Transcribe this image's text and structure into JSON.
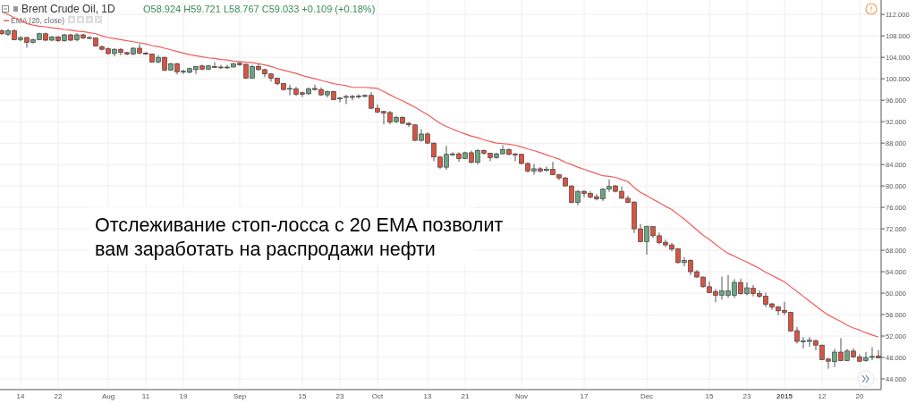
{
  "chart_data": {
    "type": "candlestick",
    "title": "Brent Crude Oil, 1D",
    "annotations": [
      "O58.924 H59.721 L58.767 C59.033 +0.109 (+0.18%)",
      "Отслеживание стоп-лосса с 20 EMA позволит вам заработать на распродажи нефти"
    ],
    "categories": [
      null,
      null,
      null,
      "14",
      null,
      null,
      null,
      null,
      null,
      "22",
      null,
      null,
      null,
      null,
      null,
      null,
      null,
      "Aug",
      null,
      null,
      null,
      null,
      null,
      "11",
      null,
      null,
      null,
      null,
      null,
      "19",
      null,
      null,
      null,
      null,
      null,
      null,
      null,
      null,
      "Sep",
      null,
      null,
      null,
      null,
      null,
      null,
      null,
      null,
      null,
      "15",
      null,
      null,
      null,
      null,
      null,
      "23",
      null,
      null,
      null,
      null,
      null,
      "Oct",
      null,
      null,
      null,
      null,
      null,
      null,
      null,
      "13",
      null,
      null,
      null,
      null,
      null,
      "21",
      null,
      null,
      null,
      null,
      null,
      null,
      null,
      null,
      "Nov",
      null,
      null,
      null,
      null,
      null,
      null,
      null,
      null,
      null,
      "17",
      null,
      null,
      null,
      null,
      null,
      null,
      null,
      null,
      null,
      "Dec",
      null,
      null,
      null,
      null,
      null,
      null,
      null,
      null,
      null,
      "15",
      null,
      null,
      null,
      null,
      null,
      "23",
      null,
      null,
      null,
      null,
      null,
      "2015",
      null,
      null,
      null,
      null,
      null,
      "12",
      null,
      null,
      null,
      null,
      null,
      "20",
      null,
      null,
      null
    ],
    "ohlc": [
      [
        109.0,
        109.2,
        108.2,
        108.4
      ],
      [
        108.3,
        109.3,
        108.0,
        109.0
      ],
      [
        109.0,
        109.2,
        107.2,
        107.3
      ],
      [
        107.3,
        107.9,
        107.0,
        107.7
      ],
      [
        107.7,
        107.8,
        105.8,
        106.8
      ],
      [
        106.8,
        107.5,
        106.6,
        107.3
      ],
      [
        107.3,
        108.6,
        107.2,
        108.4
      ],
      [
        108.4,
        108.6,
        107.0,
        107.2
      ],
      [
        107.2,
        108.0,
        107.0,
        107.8
      ],
      [
        107.8,
        108.0,
        106.9,
        107.1
      ],
      [
        107.1,
        108.4,
        106.9,
        108.2
      ],
      [
        108.2,
        108.4,
        107.0,
        107.2
      ],
      [
        107.3,
        108.5,
        107.0,
        108.2
      ],
      [
        108.2,
        108.4,
        107.4,
        107.6
      ],
      [
        107.7,
        107.9,
        107.4,
        107.6
      ],
      [
        107.6,
        107.7,
        106.0,
        106.1
      ],
      [
        106.0,
        106.2,
        105.3,
        105.5
      ],
      [
        105.6,
        105.8,
        104.5,
        104.7
      ],
      [
        104.7,
        105.7,
        104.2,
        105.5
      ],
      [
        105.5,
        105.7,
        104.4,
        104.9
      ],
      [
        104.9,
        105.0,
        104.4,
        104.6
      ],
      [
        104.6,
        105.9,
        104.4,
        105.7
      ],
      [
        105.7,
        106.5,
        104.6,
        104.8
      ],
      [
        104.8,
        105.0,
        104.5,
        104.6
      ],
      [
        104.6,
        104.7,
        103.0,
        103.1
      ],
      [
        103.1,
        104.4,
        102.9,
        104.0
      ],
      [
        104.0,
        104.1,
        101.4,
        101.6
      ],
      [
        101.6,
        103.0,
        101.5,
        102.8
      ],
      [
        102.8,
        103.0,
        100.8,
        101.3
      ],
      [
        101.3,
        101.7,
        100.9,
        101.4
      ],
      [
        101.2,
        102.1,
        101.0,
        101.9
      ],
      [
        101.7,
        102.4,
        100.9,
        102.3
      ],
      [
        102.4,
        102.6,
        101.6,
        101.8
      ],
      [
        101.8,
        102.6,
        101.6,
        102.4
      ],
      [
        102.3,
        103.1,
        102.0,
        102.1
      ],
      [
        102.2,
        102.6,
        101.8,
        102.2
      ],
      [
        102.1,
        102.6,
        101.8,
        102.2
      ],
      [
        102.2,
        103.0,
        102.1,
        102.8
      ],
      [
        102.9,
        103.1,
        102.4,
        102.6
      ],
      [
        102.7,
        102.8,
        100.0,
        100.1
      ],
      [
        100.1,
        102.6,
        100.0,
        102.3
      ],
      [
        102.3,
        102.8,
        101.5,
        101.7
      ],
      [
        101.7,
        101.9,
        100.3,
        100.9
      ],
      [
        100.9,
        101.0,
        99.5,
        100.1
      ],
      [
        100.1,
        100.2,
        98.8,
        99.1
      ],
      [
        99.1,
        99.2,
        97.8,
        98.0
      ],
      [
        98.1,
        98.9,
        96.9,
        98.2
      ],
      [
        98.1,
        98.5,
        96.8,
        97.1
      ],
      [
        97.4,
        97.6,
        96.6,
        97.1
      ],
      [
        97.2,
        98.4,
        97.0,
        98.1
      ],
      [
        98.2,
        98.9,
        97.8,
        98.0
      ],
      [
        98.0,
        98.4,
        96.8,
        97.0
      ],
      [
        97.0,
        97.8,
        96.5,
        97.6
      ],
      [
        97.6,
        97.8,
        96.0,
        96.1
      ],
      [
        96.3,
        96.6,
        95.6,
        96.4
      ],
      [
        96.6,
        97.0,
        95.3,
        96.7
      ],
      [
        96.7,
        97.0,
        96.0,
        96.6
      ],
      [
        96.7,
        97.1,
        96.3,
        96.8
      ],
      [
        96.7,
        97.1,
        96.5,
        96.9
      ],
      [
        96.9,
        97.5,
        94.3,
        94.5
      ],
      [
        94.5,
        95.2,
        93.6,
        93.8
      ],
      [
        93.9,
        94.0,
        91.5,
        93.6
      ],
      [
        93.7,
        94.0,
        91.5,
        91.9
      ],
      [
        92.0,
        93.1,
        91.7,
        92.8
      ],
      [
        92.8,
        93.0,
        91.5,
        91.7
      ],
      [
        91.7,
        91.9,
        91.0,
        91.4
      ],
      [
        91.4,
        91.5,
        88.4,
        88.5
      ],
      [
        88.5,
        90.6,
        88.3,
        89.7
      ],
      [
        89.7,
        90.0,
        87.8,
        88.0
      ],
      [
        88.0,
        88.1,
        84.6,
        85.4
      ],
      [
        85.4,
        85.5,
        83.2,
        83.5
      ],
      [
        83.5,
        87.5,
        83.0,
        85.9
      ],
      [
        85.8,
        86.3,
        85.6,
        86.0
      ],
      [
        86.0,
        86.3,
        84.5,
        85.1
      ],
      [
        85.1,
        86.4,
        85.0,
        86.2
      ],
      [
        86.2,
        86.6,
        84.2,
        84.4
      ],
      [
        84.4,
        86.9,
        84.0,
        86.6
      ],
      [
        86.6,
        86.8,
        85.8,
        86.1
      ],
      [
        86.1,
        86.2,
        84.6,
        85.3
      ],
      [
        85.3,
        86.2,
        85.1,
        86.0
      ],
      [
        86.0,
        87.6,
        85.9,
        86.8
      ],
      [
        86.8,
        87.0,
        85.7,
        85.9
      ],
      [
        86.0,
        86.1,
        84.6,
        85.8
      ],
      [
        85.9,
        86.0,
        84.0,
        84.2
      ],
      [
        84.2,
        84.4,
        82.5,
        82.8
      ],
      [
        82.8,
        84.1,
        82.1,
        83.2
      ],
      [
        83.2,
        83.5,
        82.5,
        82.8
      ],
      [
        82.9,
        83.6,
        82.6,
        83.1
      ],
      [
        83.1,
        84.5,
        82.0,
        82.1
      ],
      [
        82.1,
        82.2,
        81.1,
        81.5
      ],
      [
        81.5,
        81.7,
        79.9,
        80.0
      ],
      [
        80.0,
        80.1,
        76.8,
        76.9
      ],
      [
        76.9,
        79.2,
        76.4,
        79.0
      ],
      [
        79.0,
        79.2,
        77.9,
        78.6
      ],
      [
        78.6,
        79.0,
        77.7,
        77.9
      ],
      [
        78.0,
        78.5,
        77.3,
        77.6
      ],
      [
        77.6,
        79.6,
        77.2,
        79.4
      ],
      [
        79.4,
        81.2,
        78.9,
        79.9
      ],
      [
        80.0,
        80.2,
        78.8,
        79.0
      ],
      [
        79.0,
        79.9,
        77.6,
        77.7
      ],
      [
        77.7,
        78.2,
        76.8,
        76.9
      ],
      [
        77.0,
        77.1,
        71.2,
        72.0
      ],
      [
        72.0,
        72.9,
        69.5,
        69.6
      ],
      [
        69.6,
        72.6,
        67.2,
        72.4
      ],
      [
        72.4,
        72.5,
        70.3,
        70.7
      ],
      [
        70.7,
        71.3,
        69.1,
        69.4
      ],
      [
        69.5,
        70.0,
        68.6,
        69.0
      ],
      [
        69.0,
        69.4,
        67.8,
        68.2
      ],
      [
        68.3,
        68.4,
        65.5,
        65.7
      ],
      [
        65.7,
        66.7,
        65.0,
        66.1
      ],
      [
        66.1,
        66.3,
        63.4,
        64.0
      ],
      [
        64.0,
        64.3,
        62.9,
        63.0
      ],
      [
        63.0,
        63.1,
        61.0,
        61.2
      ],
      [
        61.2,
        62.2,
        60.0,
        60.1
      ],
      [
        60.3,
        60.8,
        58.3,
        59.6
      ],
      [
        59.6,
        63.1,
        58.8,
        60.4
      ],
      [
        59.6,
        63.4,
        59.1,
        60.4
      ],
      [
        59.6,
        62.6,
        59.1,
        62.0
      ],
      [
        62.0,
        62.7,
        59.7,
        59.9
      ],
      [
        59.9,
        62.0,
        59.6,
        61.0
      ],
      [
        60.9,
        61.5,
        59.4,
        59.9
      ],
      [
        59.9,
        60.5,
        59.1,
        59.4
      ],
      [
        59.4,
        60.1,
        57.4,
        57.9
      ],
      [
        58.0,
        58.2,
        56.9,
        57.4
      ],
      [
        57.4,
        57.6,
        55.9,
        56.7
      ],
      [
        56.8,
        58.4,
        55.9,
        56.4
      ],
      [
        56.4,
        56.5,
        52.8,
        52.9
      ],
      [
        53.0,
        53.7,
        50.6,
        51.0
      ],
      [
        51.0,
        51.8,
        49.7,
        51.1
      ],
      [
        51.0,
        51.8,
        50.0,
        51.2
      ],
      [
        51.1,
        51.4,
        49.3,
        50.3
      ],
      [
        50.3,
        50.4,
        47.5,
        47.6
      ],
      [
        47.7,
        47.9,
        45.9,
        47.3
      ],
      [
        47.2,
        49.6,
        46.2,
        49.0
      ],
      [
        49.0,
        51.6,
        47.3,
        47.4
      ],
      [
        47.4,
        49.6,
        47.3,
        49.2
      ],
      [
        49.2,
        49.7,
        47.9,
        48.1
      ],
      [
        48.1,
        48.6,
        47.1,
        47.3
      ],
      [
        47.4,
        49.0,
        47.2,
        48.0
      ],
      [
        48.0,
        49.9,
        47.5,
        48.2
      ],
      [
        48.3,
        49.4,
        47.8,
        47.9
      ]
    ],
    "colors": [
      "#d75442",
      "#6ba583",
      "#d75442",
      "#6ba583",
      "#d75442",
      "#6ba583",
      "#6ba583",
      "#d75442",
      "#6ba583",
      "#d75442",
      "#6ba583",
      "#d75442",
      "#6ba583",
      "#d75442",
      "#d75442",
      "#d75442",
      "#d75442",
      "#d75442",
      "#6ba583",
      "#d75442",
      "#d75442",
      "#6ba583",
      "#d75442",
      "#d75442",
      "#d75442",
      "#6ba583",
      "#d75442",
      "#6ba583",
      "#d75442",
      "#6ba583",
      "#6ba583",
      "#6ba583",
      "#d75442",
      "#6ba583",
      "#d75442",
      "#6ba583",
      "#6ba583",
      "#6ba583",
      "#d75442",
      "#d75442",
      "#6ba583",
      "#d75442",
      "#d75442",
      "#d75442",
      "#d75442",
      "#d75442",
      "#6ba583",
      "#d75442",
      "#d75442",
      "#6ba583",
      "#d75442",
      "#d75442",
      "#6ba583",
      "#d75442",
      "#6ba583",
      "#6ba583",
      "#d75442",
      "#6ba583",
      "#6ba583",
      "#d75442",
      "#d75442",
      "#d75442",
      "#d75442",
      "#6ba583",
      "#d75442",
      "#d75442",
      "#d75442",
      "#6ba583",
      "#d75442",
      "#d75442",
      "#d75442",
      "#6ba583",
      "#6ba583",
      "#d75442",
      "#6ba583",
      "#d75442",
      "#6ba583",
      "#d75442",
      "#d75442",
      "#6ba583",
      "#6ba583",
      "#d75442",
      "#d75442",
      "#d75442",
      "#d75442",
      "#6ba583",
      "#d75442",
      "#6ba583",
      "#d75442",
      "#d75442",
      "#d75442",
      "#d75442",
      "#6ba583",
      "#d75442",
      "#d75442",
      "#d75442",
      "#6ba583",
      "#6ba583",
      "#d75442",
      "#d75442",
      "#d75442",
      "#d75442",
      "#d75442",
      "#6ba583",
      "#d75442",
      "#d75442",
      "#d75442",
      "#d75442",
      "#d75442",
      "#6ba583",
      "#d75442",
      "#d75442",
      "#d75442",
      "#d75442",
      "#d75442",
      "#6ba583",
      "#6ba583",
      "#6ba583",
      "#d75442",
      "#6ba583",
      "#d75442",
      "#d75442",
      "#d75442",
      "#d75442",
      "#d75442",
      "#d75442",
      "#d75442",
      "#d75442",
      "#6ba583",
      "#6ba583",
      "#d75442",
      "#d75442",
      "#d75442",
      "#6ba583",
      "#d75442",
      "#6ba583",
      "#d75442",
      "#d75442",
      "#6ba583",
      "#6ba583",
      "#d75442"
    ],
    "series": [
      {
        "name": "EMA (20, close)",
        "type": "line",
        "color": "#f25a5a",
        "values": [
          112.5,
          112.0,
          111.4,
          110.9,
          110.3,
          110.0,
          109.8,
          109.7,
          109.5,
          109.4,
          109.2,
          109.1,
          108.9,
          108.8,
          108.6,
          108.4,
          108.0,
          107.7,
          107.5,
          107.3,
          107.1,
          106.9,
          106.7,
          106.5,
          106.2,
          106.0,
          105.7,
          105.4,
          105.1,
          104.8,
          104.5,
          104.3,
          104.1,
          103.9,
          103.8,
          103.6,
          103.5,
          103.3,
          103.2,
          103.1,
          103.0,
          102.8,
          102.6,
          102.3,
          101.9,
          101.6,
          101.3,
          101.0,
          100.6,
          100.3,
          100.0,
          99.7,
          99.4,
          99.1,
          98.9,
          98.7,
          98.4,
          98.4,
          98.4,
          98.3,
          98.2,
          97.6,
          97.0,
          96.4,
          95.9,
          95.3,
          94.7,
          94.0,
          93.3,
          92.5,
          91.7,
          91.1,
          90.6,
          90.1,
          89.7,
          89.3,
          89.0,
          88.6,
          88.3,
          88.0,
          87.9,
          87.8,
          87.6,
          87.3,
          86.9,
          86.6,
          86.2,
          85.8,
          85.4,
          85.0,
          84.4,
          84.0,
          83.5,
          83.1,
          82.7,
          82.3,
          81.9,
          81.8,
          81.6,
          81.2,
          80.8,
          79.7,
          78.8,
          78.2,
          77.5,
          76.9,
          76.2,
          75.6,
          74.7,
          73.8,
          72.8,
          71.8,
          70.8,
          70.0,
          69.1,
          68.2,
          67.4,
          66.9,
          66.3,
          65.8,
          65.2,
          64.6,
          63.9,
          63.3,
          62.7,
          62.1,
          61.2,
          60.3,
          59.4,
          58.5,
          57.6,
          56.7,
          55.9,
          55.3,
          54.7,
          54.0,
          53.5,
          53.1,
          52.6,
          52.2,
          51.8
        ]
      }
    ],
    "ylim": [
      42,
      114.7
    ],
    "yticks": [
      {
        "value": 44,
        "label": "44.000"
      },
      {
        "value": 48,
        "label": "48.000"
      },
      {
        "value": 52,
        "label": "52.000"
      },
      {
        "value": 56,
        "label": "56.000"
      },
      {
        "value": 60,
        "label": "60.000"
      },
      {
        "value": 64,
        "label": "64.000"
      },
      {
        "value": 68,
        "label": "68.000"
      },
      {
        "value": 72,
        "label": "72.000"
      },
      {
        "value": 76,
        "label": "76.000"
      },
      {
        "value": 80,
        "label": "80.000"
      },
      {
        "value": 84,
        "label": "84.000"
      },
      {
        "value": 88,
        "label": "88.000"
      },
      {
        "value": 92,
        "label": "92.000"
      },
      {
        "value": 96,
        "label": "96.000"
      },
      {
        "value": 100,
        "label": "100.000"
      },
      {
        "value": 104,
        "label": "104.000"
      },
      {
        "value": 108,
        "label": "108.000"
      },
      {
        "value": 112,
        "label": "112.000"
      }
    ],
    "grid": true,
    "legend": "top left"
  }
}
